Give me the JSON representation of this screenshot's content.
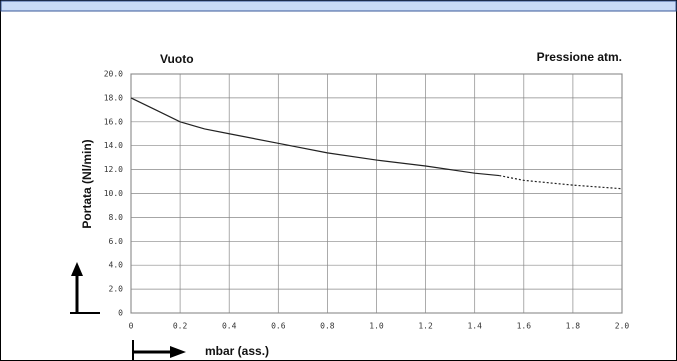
{
  "chart_data": {
    "type": "line",
    "title_left": "Vuoto",
    "title_right": "Pressione atm.",
    "y_label": "Portata (Nl/min)",
    "x_label": "mbar (ass.)",
    "series": [
      {
        "color": "#222222",
        "dash": false,
        "x": [
          0,
          0.1,
          0.2,
          0.3,
          0.4,
          0.6,
          0.8,
          1.0,
          1.2,
          1.4,
          1.5
        ],
        "values": [
          18.0,
          17.0,
          16.0,
          15.4,
          15.0,
          14.2,
          13.4,
          12.8,
          12.3,
          11.7,
          11.5
        ]
      },
      {
        "color": "#222222",
        "dash": true,
        "x": [
          1.5,
          1.6,
          1.8,
          2.0
        ],
        "values": [
          11.5,
          11.1,
          10.7,
          10.4
        ]
      }
    ],
    "xlim": [
      0,
      2.0
    ],
    "xticks": [
      0,
      0.2,
      0.4,
      0.6,
      0.8,
      {
        "value": 1.0,
        "label": "1.0"
      },
      1.2,
      1.4,
      1.6,
      1.8,
      {
        "value": 2.0,
        "label": "2.0"
      }
    ],
    "ylim": [
      0,
      20
    ],
    "yticks": [
      0,
      {
        "value": 2,
        "label": "2.0"
      },
      {
        "value": 4,
        "label": "4.0"
      },
      {
        "value": 6,
        "label": "6.0"
      },
      {
        "value": 8,
        "label": "8.0"
      },
      {
        "value": 10,
        "label": "10.0"
      },
      {
        "value": 12,
        "label": "12.0"
      },
      {
        "value": 14,
        "label": "14.0"
      },
      {
        "value": 16,
        "label": "16.0"
      },
      {
        "value": 18,
        "label": "18.0"
      },
      {
        "value": 20,
        "label": "20.0"
      }
    ],
    "grid": true
  }
}
